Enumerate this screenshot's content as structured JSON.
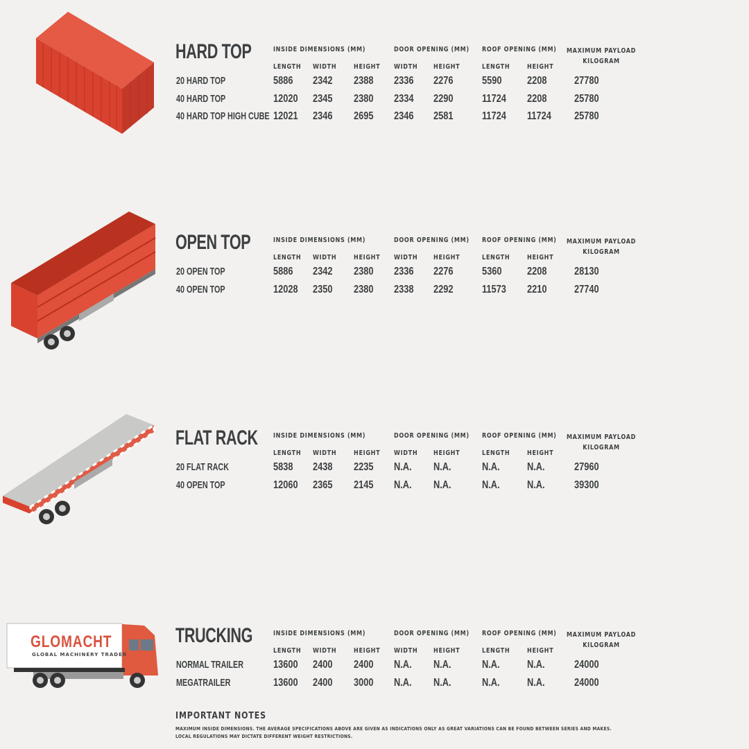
{
  "colors": {
    "text": "#3d3f41",
    "container_red": "#d9422e",
    "background": "#f2f1ef"
  },
  "headers": {
    "inside": "INSIDE DIMENSIONS (MM)",
    "door": "DOOR OPENING (MM)",
    "roof": "ROOF OPENING (MM)",
    "payload": "MAXIMUM PAYLOAD",
    "payload_unit": "KILOGRAM",
    "sub": [
      "LENGTH",
      "WIDTH",
      "HEIGHT",
      "WIDTH",
      "HEIGHT",
      "LENGTH",
      "HEIGHT"
    ]
  },
  "sections": [
    {
      "title": "HARD TOP",
      "illustration": "shipping-container",
      "rows": [
        {
          "name": "20 HARD TOP",
          "values": [
            "5886",
            "2342",
            "2388",
            "2336",
            "2276",
            "5590",
            "2208",
            "27780"
          ]
        },
        {
          "name": "40 HARD TOP",
          "values": [
            "12020",
            "2345",
            "2380",
            "2334",
            "2290",
            "11724",
            "2208",
            "25780"
          ]
        },
        {
          "name": "40 HARD TOP HIGH CUBE",
          "values": [
            "12021",
            "2346",
            "2695",
            "2346",
            "2581",
            "11724",
            "11724",
            "25780"
          ]
        }
      ]
    },
    {
      "title": "OPEN TOP",
      "illustration": "open-top-trailer",
      "rows": [
        {
          "name": "20 OPEN TOP",
          "values": [
            "5886",
            "2342",
            "2380",
            "2336",
            "2276",
            "5360",
            "2208",
            "28130"
          ]
        },
        {
          "name": "40 OPEN TOP",
          "values": [
            "12028",
            "2350",
            "2380",
            "2338",
            "2292",
            "11573",
            "2210",
            "27740"
          ]
        }
      ]
    },
    {
      "title": "FLAT RACK",
      "illustration": "flat-rack-trailer",
      "rows": [
        {
          "name": "20 FLAT RACK",
          "values": [
            "5838",
            "2438",
            "2235",
            "N.A.",
            "N.A.",
            "N.A.",
            "N.A.",
            "27960"
          ]
        },
        {
          "name": "40 OPEN TOP",
          "values": [
            "12060",
            "2365",
            "2145",
            "N.A.",
            "N.A.",
            "N.A.",
            "N.A.",
            "39300"
          ]
        }
      ]
    },
    {
      "title": "TRUCKING",
      "illustration": "truck",
      "rows": [
        {
          "name": "NORMAL TRAILER",
          "values": [
            "13600",
            "2400",
            "2400",
            "N.A.",
            "N.A.",
            "N.A.",
            "N.A.",
            "24000"
          ]
        },
        {
          "name": "MEGATRAILER",
          "values": [
            "13600",
            "2400",
            "3000",
            "N.A.",
            "N.A.",
            "N.A.",
            "N.A.",
            "24000"
          ]
        }
      ]
    }
  ],
  "logo": {
    "brand": "GLOMACHT",
    "tagline": "GLOBAL MACHINERY TRADER"
  },
  "notes": {
    "title": "IMPORTANT NOTES",
    "lines": [
      "MAXIMUM INSIDE DIMENSIONS. THE AVERAGE SPECIFICATIONS ABOVE ARE GIVEN AS INDICATIONS ONLY AS GREAT VARIATIONS CAN BE FOUND BETWEEN SERIES AND MAKES.",
      "LOCAL REGULATIONS MAY DICTATE DIFFERENT WEIGHT RESTRICTIONS."
    ]
  }
}
